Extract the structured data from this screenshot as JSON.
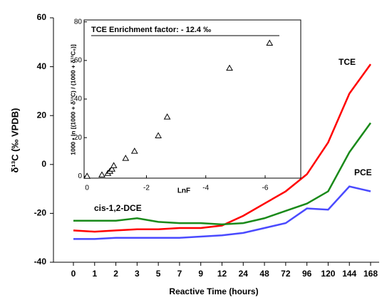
{
  "chart_data": [
    {
      "type": "line",
      "x_label": "Reactive Time (hours)",
      "y_label": "δ¹³C (‰ VPDB)",
      "categories": [
        "0",
        "1",
        "2",
        "3",
        "5",
        "7",
        "9",
        "12",
        "24",
        "48",
        "72",
        "96",
        "120",
        "144",
        "168"
      ],
      "ylim": [
        -40,
        60
      ],
      "yticks": [
        -40,
        -20,
        0,
        20,
        40,
        60
      ],
      "series": [
        {
          "name": "TCE",
          "color": "#ff0000",
          "values": [
            -27,
            -27.5,
            -27,
            -26.5,
            -26.5,
            -26,
            -26,
            -25,
            -21,
            -16,
            -11,
            -4,
            9,
            29,
            41
          ]
        },
        {
          "name": "PCE",
          "color": "#4a4aff",
          "values": [
            -30.5,
            -30.5,
            -30,
            -30,
            -30,
            -30,
            -29.5,
            -29,
            -28,
            -26,
            -24,
            -18,
            -18.5,
            -9,
            -11
          ]
        },
        {
          "name": "cis-1,2-DCE",
          "color": "#1a8a1a",
          "values": [
            -23,
            -23,
            -23,
            -22,
            -23.5,
            -24,
            -24,
            -24.5,
            -24,
            -22,
            -19,
            -16,
            -11,
            5,
            17
          ]
        }
      ]
    },
    {
      "type": "scatter",
      "title": "TCE Enrichment factor: - 12.4 ‰",
      "x_label": "LnF",
      "y_label": "1000 • ln [(1000 + δ¹³C) / (1000 + δ¹³C₀)]",
      "xlim": [
        0.1,
        -7.2
      ],
      "xticks": [
        0,
        -2,
        -4,
        -6
      ],
      "ylim": [
        -1,
        81
      ],
      "yticks": [
        0,
        20,
        40,
        60,
        80
      ],
      "x": [
        0,
        -0.5,
        -0.7,
        -0.77,
        -0.84,
        -0.9,
        -1.3,
        -1.6,
        -2.4,
        -2.7,
        -4.8,
        -6.15
      ],
      "values": [
        0,
        0.7,
        1.5,
        2.6,
        3.7,
        5.5,
        9.3,
        13,
        21,
        30.7,
        56,
        69
      ]
    }
  ]
}
